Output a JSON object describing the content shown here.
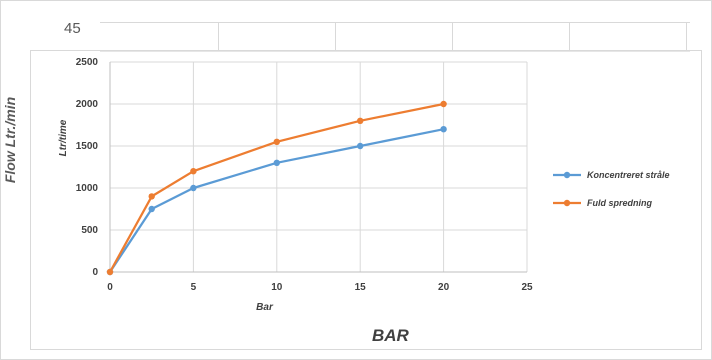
{
  "page_number": "45",
  "outer_y_title": "Flow Ltr./min",
  "outer_x_title": "BAR",
  "chart_data": {
    "type": "line",
    "xlabel": "Bar",
    "ylabel": "Ltr/time",
    "xlim": [
      0,
      25
    ],
    "ylim": [
      0,
      2500
    ],
    "x_ticks": [
      0,
      5,
      10,
      15,
      20,
      25
    ],
    "y_ticks": [
      0,
      500,
      1000,
      1500,
      2000,
      2500
    ],
    "grid": true,
    "legend_position": "right",
    "series": [
      {
        "name": "Koncentreret stråle",
        "color": "#5b9bd5",
        "x": [
          0,
          2.5,
          5,
          10,
          15,
          20
        ],
        "y": [
          0,
          750,
          1000,
          1300,
          1500,
          1700
        ]
      },
      {
        "name": "Fuld spredning",
        "color": "#ed7d31",
        "x": [
          0,
          2.5,
          5,
          10,
          15,
          20
        ],
        "y": [
          0,
          900,
          1200,
          1550,
          1800,
          2000
        ]
      }
    ]
  }
}
